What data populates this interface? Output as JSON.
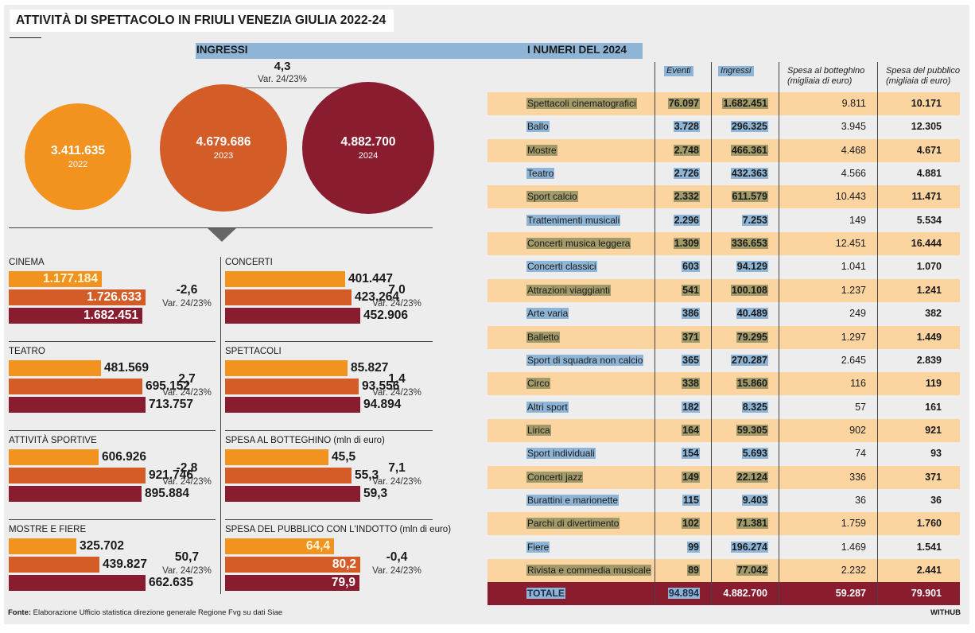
{
  "title": "ATTIVITÀ DI SPETTACOLO IN FRIULI VENEZIA GIULIA 2022-24",
  "ingressi": {
    "label": "INGRESSI",
    "change_value": "4,3",
    "change_label": "Var. 24/23%",
    "circles": [
      {
        "value": "3.411.635",
        "year": "2022",
        "color": "#f2921f"
      },
      {
        "value": "4.679.686",
        "year": "2023",
        "color": "#d35c27"
      },
      {
        "value": "4.882.700",
        "year": "2024",
        "color": "#8a1c30"
      }
    ]
  },
  "categories": [
    {
      "title": "CINEMA",
      "values": [
        "1.177.184",
        "1.726.633",
        "1.682.451"
      ],
      "raw": [
        1177184,
        1726633,
        1682451
      ],
      "var": "-2,6",
      "var_label": "Var. 24/23%",
      "label_inside": true
    },
    {
      "title": "CONCERTI",
      "values": [
        "401.447",
        "423.264",
        "452.906"
      ],
      "raw": [
        401447,
        423264,
        452906
      ],
      "var": "7,0",
      "var_label": "Var. 24/23%",
      "label_inside": false
    },
    {
      "title": "TEATRO",
      "values": [
        "481.569",
        "695.152",
        "713.757"
      ],
      "raw": [
        481569,
        695152,
        713757
      ],
      "var": "2,7",
      "var_label": "Var. 24/23%",
      "label_inside": false
    },
    {
      "title": "SPETTACOLI",
      "values": [
        "85.827",
        "93.556",
        "94.894"
      ],
      "raw": [
        85827,
        93556,
        94894
      ],
      "var": "1,4",
      "var_label": "Var. 24/23%",
      "label_inside": false
    },
    {
      "title": "ATTIVITÀ SPORTIVE",
      "values": [
        "606.926",
        "921.746",
        "895.884"
      ],
      "raw": [
        606926,
        921746,
        895884
      ],
      "var": "-2,8",
      "var_label": "Var. 24/23%",
      "label_inside": false
    },
    {
      "title": "SPESA AL BOTTEGHINO (mln di euro)",
      "values": [
        "45,5",
        "55,3",
        "59,3"
      ],
      "raw": [
        45.5,
        55.3,
        59.3
      ],
      "var": "7,1",
      "var_label": "Var. 24/23%",
      "label_inside": false
    },
    {
      "title": "MOSTRE E FIERE",
      "values": [
        "325.702",
        "439.827",
        "662.635"
      ],
      "raw": [
        325702,
        439827,
        662635
      ],
      "var": "50,7",
      "var_label": "Var. 24/23%",
      "label_inside": false
    },
    {
      "title": "SPESA DEL PUBBLICO CON L'INDOTTO (mln di euro)",
      "values": [
        "64,4",
        "80,2",
        "79,9"
      ],
      "raw": [
        64.4,
        80.2,
        79.9
      ],
      "var": "-0,4",
      "var_label": "Var. 24/23%",
      "label_inside": true
    }
  ],
  "table": {
    "title": "I NUMERI DEL 2024",
    "headers": [
      "Eventi",
      "Ingressi",
      "Spesa al botteghino (migliaia di euro)",
      "Spesa del pubblico (migliaia di euro)"
    ],
    "rows": [
      [
        "Spettacoli cinematografici",
        "76.097",
        "1.682.451",
        "9.811",
        "10.171"
      ],
      [
        "Ballo",
        "3.728",
        "296.325",
        "3.945",
        "12.305"
      ],
      [
        "Mostre",
        "2.748",
        "466.361",
        "4.468",
        "4.671"
      ],
      [
        "Teatro",
        "2.726",
        "432.363",
        "4.566",
        "4.881"
      ],
      [
        "Sport calcio",
        "2.332",
        "611.579",
        "10.443",
        "11.471"
      ],
      [
        "Trattenimenti musicali",
        "2.296",
        "7.253",
        "149",
        "5.534"
      ],
      [
        "Concerti musica leggera",
        "1.309",
        "336.653",
        "12.451",
        "16.444"
      ],
      [
        "Concerti classici",
        "603",
        "94.129",
        "1.041",
        "1.070"
      ],
      [
        "Attrazioni viaggianti",
        "541",
        "100.108",
        "1.237",
        "1.241"
      ],
      [
        "Arte varia",
        "386",
        "40.489",
        "249",
        "382"
      ],
      [
        "Balletto",
        "371",
        "79.295",
        "1.297",
        "1.449"
      ],
      [
        "Sport di squadra non calcio",
        "365",
        "270.287",
        "2.645",
        "2.839"
      ],
      [
        "Circo",
        "338",
        "15.860",
        "116",
        "119"
      ],
      [
        "Altri sport",
        "182",
        "8.325",
        "57",
        "161"
      ],
      [
        "Lirica",
        "164",
        "59.305",
        "902",
        "921"
      ],
      [
        "Sport individuali",
        "154",
        "5.693",
        "74",
        "93"
      ],
      [
        "Concerti jazz",
        "149",
        "22.124",
        "336",
        "371"
      ],
      [
        "Burattini e marionette",
        "115",
        "9.403",
        "36",
        "36"
      ],
      [
        "Parchi di divertimento",
        "102",
        "71.381",
        "1.759",
        "1.760"
      ],
      [
        "Fiere",
        "99",
        "196.274",
        "1.469",
        "1.541"
      ],
      [
        "Rivista e commedia musicale",
        "89",
        "77.042",
        "2.232",
        "2.441"
      ]
    ],
    "total": [
      "TOTALE",
      "94.894",
      "4.882.700",
      "59.287",
      "79.901"
    ]
  },
  "footer": {
    "source_label": "Fonte:",
    "source_text": " Elaborazione Ufficio statistica direzione generale Regione Fvg su dati Siae",
    "brand": "WITHUB"
  },
  "colors": {
    "y2022": "#f2921f",
    "y2023": "#d35c27",
    "y2024": "#8a1c30",
    "row_odd": "#fcd4a0",
    "row_even": "#ededed",
    "total": "#8a1c30",
    "highlight_blue": "#8fb5d6",
    "highlight_brown": "#a39a6a"
  },
  "chart_data": [
    {
      "type": "bar",
      "title": "INGRESSI",
      "categories": [
        "2022",
        "2023",
        "2024"
      ],
      "values": [
        3411635,
        4679686,
        4882700
      ]
    },
    {
      "type": "bar",
      "title": "CINEMA",
      "categories": [
        "2022",
        "2023",
        "2024"
      ],
      "values": [
        1177184,
        1726633,
        1682451
      ]
    },
    {
      "type": "bar",
      "title": "CONCERTI",
      "categories": [
        "2022",
        "2023",
        "2024"
      ],
      "values": [
        401447,
        423264,
        452906
      ]
    },
    {
      "type": "bar",
      "title": "TEATRO",
      "categories": [
        "2022",
        "2023",
        "2024"
      ],
      "values": [
        481569,
        695152,
        713757
      ]
    },
    {
      "type": "bar",
      "title": "SPETTACOLI",
      "categories": [
        "2022",
        "2023",
        "2024"
      ],
      "values": [
        85827,
        93556,
        94894
      ]
    },
    {
      "type": "bar",
      "title": "ATTIVITÀ SPORTIVE",
      "categories": [
        "2022",
        "2023",
        "2024"
      ],
      "values": [
        606926,
        921746,
        895884
      ]
    },
    {
      "type": "bar",
      "title": "SPESA AL BOTTEGHINO (mln di euro)",
      "categories": [
        "2022",
        "2023",
        "2024"
      ],
      "values": [
        45.5,
        55.3,
        59.3
      ]
    },
    {
      "type": "bar",
      "title": "MOSTRE E FIERE",
      "categories": [
        "2022",
        "2023",
        "2024"
      ],
      "values": [
        325702,
        439827,
        662635
      ]
    },
    {
      "type": "bar",
      "title": "SPESA DEL PUBBLICO CON L'INDOTTO (mln di euro)",
      "categories": [
        "2022",
        "2023",
        "2024"
      ],
      "values": [
        64.4,
        80.2,
        79.9
      ]
    },
    {
      "type": "table",
      "title": "I NUMERI DEL 2024"
    }
  ]
}
